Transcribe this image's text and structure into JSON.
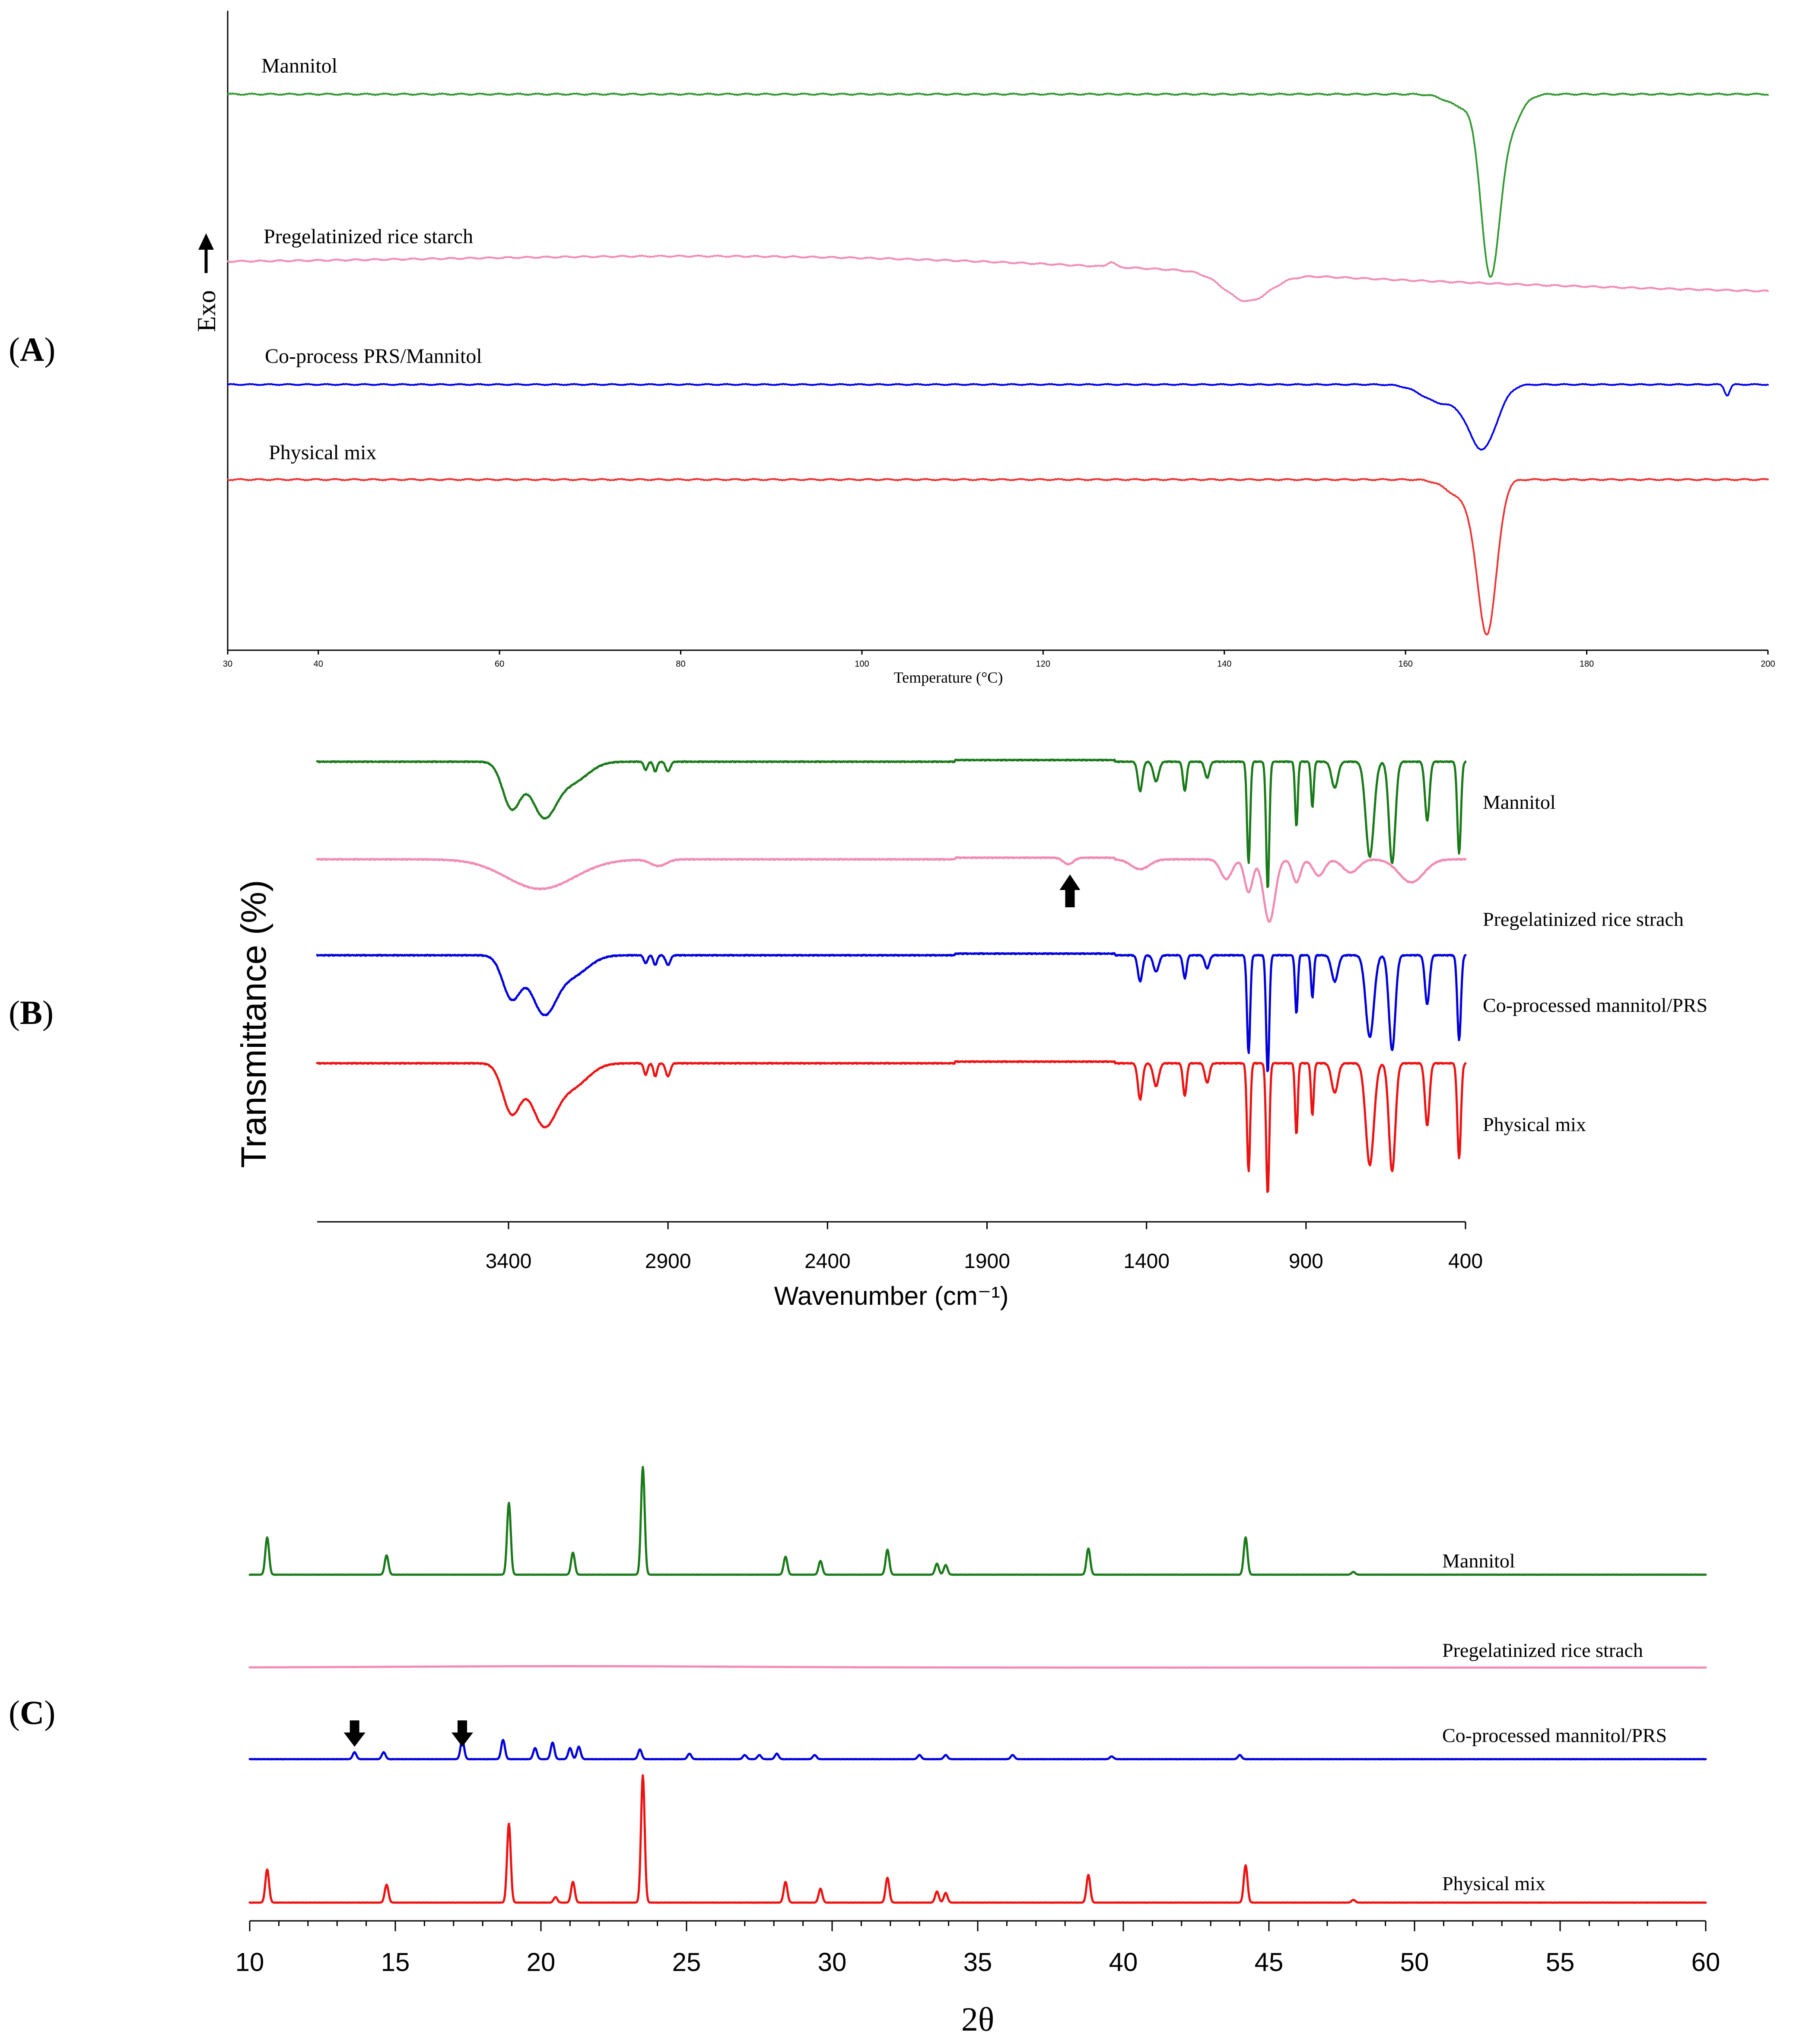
{
  "chart_data": [
    {
      "panel": "A",
      "type": "line",
      "panel_label_open": "(",
      "panel_label_letter": "A",
      "panel_label_close": ")",
      "ylabel": "Exo",
      "ylabel_arrow": "up",
      "xlabel": "Temperature (°C)",
      "xlim": [
        30,
        200
      ],
      "ticks": [
        30,
        40,
        60,
        80,
        100,
        120,
        140,
        160,
        180,
        200
      ],
      "series": [
        {
          "name": "Mannitol",
          "color": "#339933",
          "baseline": 0.0,
          "drift": 0.0,
          "features": [
            {
              "kind": "dip",
              "center": 169.3,
              "depth": 1.0,
              "width": 1.4
            },
            {
              "kind": "dip",
              "center": 171.0,
              "depth": 0.25,
              "width": 2.0
            },
            {
              "kind": "dip",
              "center": 166.5,
              "depth": 0.08,
              "width": 2.5
            }
          ]
        },
        {
          "name": "Pregelatinized rice starch",
          "color": "#f08cb4",
          "baseline": 1.2,
          "drift": -0.15,
          "features": [
            {
              "kind": "dip",
              "center": 142.5,
              "depth": 0.17,
              "width": 3.5
            },
            {
              "kind": "bump",
              "center": 127.5,
              "depth": 0.03,
              "width": 0.6
            }
          ]
        },
        {
          "name": "Co-process PRS/Mannitol",
          "color": "#0000ee",
          "baseline": 1.9,
          "drift": 0.0,
          "features": [
            {
              "kind": "dip",
              "center": 168.5,
              "depth": 0.52,
              "width": 2.2
            },
            {
              "kind": "dip",
              "center": 164.0,
              "depth": 0.15,
              "width": 3.0
            },
            {
              "kind": "dip",
              "center": 195.5,
              "depth": 0.09,
              "width": 0.4
            }
          ]
        },
        {
          "name": "Physical mix",
          "color": "#ee3333",
          "baseline": 2.5,
          "drift": 0.0,
          "features": [
            {
              "kind": "dip",
              "center": 169.0,
              "depth": 0.95,
              "width": 1.5
            },
            {
              "kind": "dip",
              "center": 166.5,
              "depth": 0.12,
              "width": 2.5
            }
          ]
        }
      ]
    },
    {
      "panel": "B",
      "type": "line",
      "panel_label_open": "(",
      "panel_label_letter": "B",
      "panel_label_close": ")",
      "ylabel": "Transmittance (%)",
      "xlabel": "Wavenumber (cm⁻¹)",
      "xlim": [
        4000,
        400
      ],
      "ticks": [
        3400,
        2900,
        2400,
        1900,
        1400,
        900,
        400
      ],
      "annotation": {
        "kind": "arrow-up",
        "x": 1640
      },
      "series": [
        {
          "name": "Mannitol",
          "color": "#1a7a1a",
          "offset": 0,
          "bands": [
            [
              3390,
              0.28,
              40
            ],
            [
              3290,
              0.32,
              55
            ],
            [
              3200,
              0.12,
              70
            ],
            [
              2970,
              0.05,
              8
            ],
            [
              2940,
              0.06,
              8
            ],
            [
              2900,
              0.06,
              10
            ],
            [
              1420,
              0.18,
              10
            ],
            [
              1370,
              0.12,
              12
            ],
            [
              1280,
              0.18,
              8
            ],
            [
              1210,
              0.1,
              10
            ],
            [
              1080,
              0.62,
              7
            ],
            [
              1020,
              0.78,
              7
            ],
            [
              930,
              0.4,
              6
            ],
            [
              880,
              0.28,
              6
            ],
            [
              810,
              0.16,
              14
            ],
            [
              700,
              0.58,
              18
            ],
            [
              630,
              0.62,
              14
            ],
            [
              520,
              0.36,
              10
            ],
            [
              420,
              0.56,
              8
            ]
          ]
        },
        {
          "name": "Pregelatinized rice strach",
          "color": "#f08cb4",
          "offset": 1,
          "bands": [
            [
              3300,
              0.18,
              150
            ],
            [
              2930,
              0.04,
              35
            ],
            [
              1645,
              0.04,
              22
            ],
            [
              1420,
              0.06,
              40
            ],
            [
              1150,
              0.12,
              25
            ],
            [
              1080,
              0.2,
              18
            ],
            [
              1015,
              0.38,
              25
            ],
            [
              930,
              0.14,
              18
            ],
            [
              860,
              0.1,
              25
            ],
            [
              760,
              0.08,
              35
            ],
            [
              570,
              0.14,
              55
            ]
          ]
        },
        {
          "name": "Co-processed mannitol/PRS",
          "color": "#0000dd",
          "offset": 2,
          "bands": [
            [
              3390,
              0.26,
              40
            ],
            [
              3290,
              0.34,
              55
            ],
            [
              3200,
              0.12,
              70
            ],
            [
              2970,
              0.05,
              8
            ],
            [
              2940,
              0.06,
              8
            ],
            [
              2900,
              0.06,
              10
            ],
            [
              1420,
              0.16,
              10
            ],
            [
              1370,
              0.1,
              12
            ],
            [
              1280,
              0.14,
              8
            ],
            [
              1210,
              0.08,
              10
            ],
            [
              1080,
              0.6,
              7
            ],
            [
              1020,
              0.72,
              7
            ],
            [
              930,
              0.36,
              6
            ],
            [
              880,
              0.26,
              6
            ],
            [
              810,
              0.16,
              14
            ],
            [
              700,
              0.5,
              18
            ],
            [
              630,
              0.58,
              14
            ],
            [
              520,
              0.3,
              10
            ],
            [
              420,
              0.52,
              8
            ]
          ]
        },
        {
          "name": "Physical mix",
          "color": "#ee1111",
          "offset": 3,
          "bands": [
            [
              3390,
              0.3,
              40
            ],
            [
              3290,
              0.36,
              55
            ],
            [
              3200,
              0.14,
              70
            ],
            [
              2970,
              0.07,
              8
            ],
            [
              2940,
              0.08,
              8
            ],
            [
              2900,
              0.08,
              10
            ],
            [
              1420,
              0.22,
              10
            ],
            [
              1370,
              0.14,
              12
            ],
            [
              1280,
              0.2,
              8
            ],
            [
              1210,
              0.12,
              10
            ],
            [
              1080,
              0.66,
              7
            ],
            [
              1020,
              0.8,
              7
            ],
            [
              930,
              0.44,
              6
            ],
            [
              880,
              0.32,
              6
            ],
            [
              810,
              0.18,
              14
            ],
            [
              700,
              0.62,
              18
            ],
            [
              630,
              0.66,
              14
            ],
            [
              520,
              0.38,
              10
            ],
            [
              420,
              0.58,
              8
            ]
          ]
        }
      ]
    },
    {
      "panel": "C",
      "type": "line",
      "panel_label_open": "(",
      "panel_label_letter": "C",
      "panel_label_close": ")",
      "xlabel": "2θ",
      "xlim": [
        10,
        60
      ],
      "ticks": [
        10,
        15,
        20,
        25,
        30,
        35,
        40,
        45,
        50,
        55,
        60
      ],
      "annotations": [
        {
          "kind": "arrow-down",
          "x": 13.6
        },
        {
          "kind": "arrow-down",
          "x": 17.3
        }
      ],
      "series": [
        {
          "name": "Mannitol",
          "color": "#1a7a1a",
          "offset": 0,
          "peaks": [
            [
              10.6,
              0.27
            ],
            [
              14.7,
              0.14
            ],
            [
              18.9,
              0.52
            ],
            [
              21.1,
              0.16
            ],
            [
              23.5,
              0.78
            ],
            [
              28.4,
              0.13
            ],
            [
              29.6,
              0.1
            ],
            [
              31.9,
              0.18
            ],
            [
              33.6,
              0.08
            ],
            [
              33.9,
              0.07
            ],
            [
              38.8,
              0.19
            ],
            [
              44.2,
              0.27
            ],
            [
              47.9,
              0.02
            ]
          ]
        },
        {
          "name": "Pregelatinized rice strach",
          "color": "#f08cb4",
          "offset": 1,
          "peaks": []
        },
        {
          "name": "Co-processed mannitol/PRS",
          "color": "#0000dd",
          "offset": 2,
          "peaks": [
            [
              13.6,
              0.05
            ],
            [
              14.6,
              0.05
            ],
            [
              17.3,
              0.14
            ],
            [
              18.7,
              0.14
            ],
            [
              19.8,
              0.08
            ],
            [
              20.4,
              0.12
            ],
            [
              21.0,
              0.08
            ],
            [
              21.3,
              0.09
            ],
            [
              23.4,
              0.07
            ],
            [
              25.1,
              0.04
            ],
            [
              27.0,
              0.03
            ],
            [
              27.5,
              0.03
            ],
            [
              28.1,
              0.04
            ],
            [
              29.4,
              0.03
            ],
            [
              33.0,
              0.03
            ],
            [
              33.9,
              0.03
            ],
            [
              36.2,
              0.03
            ],
            [
              39.6,
              0.02
            ],
            [
              44.0,
              0.03
            ]
          ]
        },
        {
          "name": "Physical mix",
          "color": "#ee1111",
          "offset": 3,
          "peaks": [
            [
              10.6,
              0.24
            ],
            [
              14.7,
              0.13
            ],
            [
              18.9,
              0.57
            ],
            [
              20.5,
              0.04
            ],
            [
              21.1,
              0.15
            ],
            [
              23.5,
              0.92
            ],
            [
              28.4,
              0.15
            ],
            [
              29.6,
              0.1
            ],
            [
              31.9,
              0.18
            ],
            [
              33.6,
              0.08
            ],
            [
              33.9,
              0.07
            ],
            [
              38.8,
              0.2
            ],
            [
              44.2,
              0.27
            ],
            [
              47.9,
              0.02
            ]
          ]
        }
      ]
    }
  ]
}
